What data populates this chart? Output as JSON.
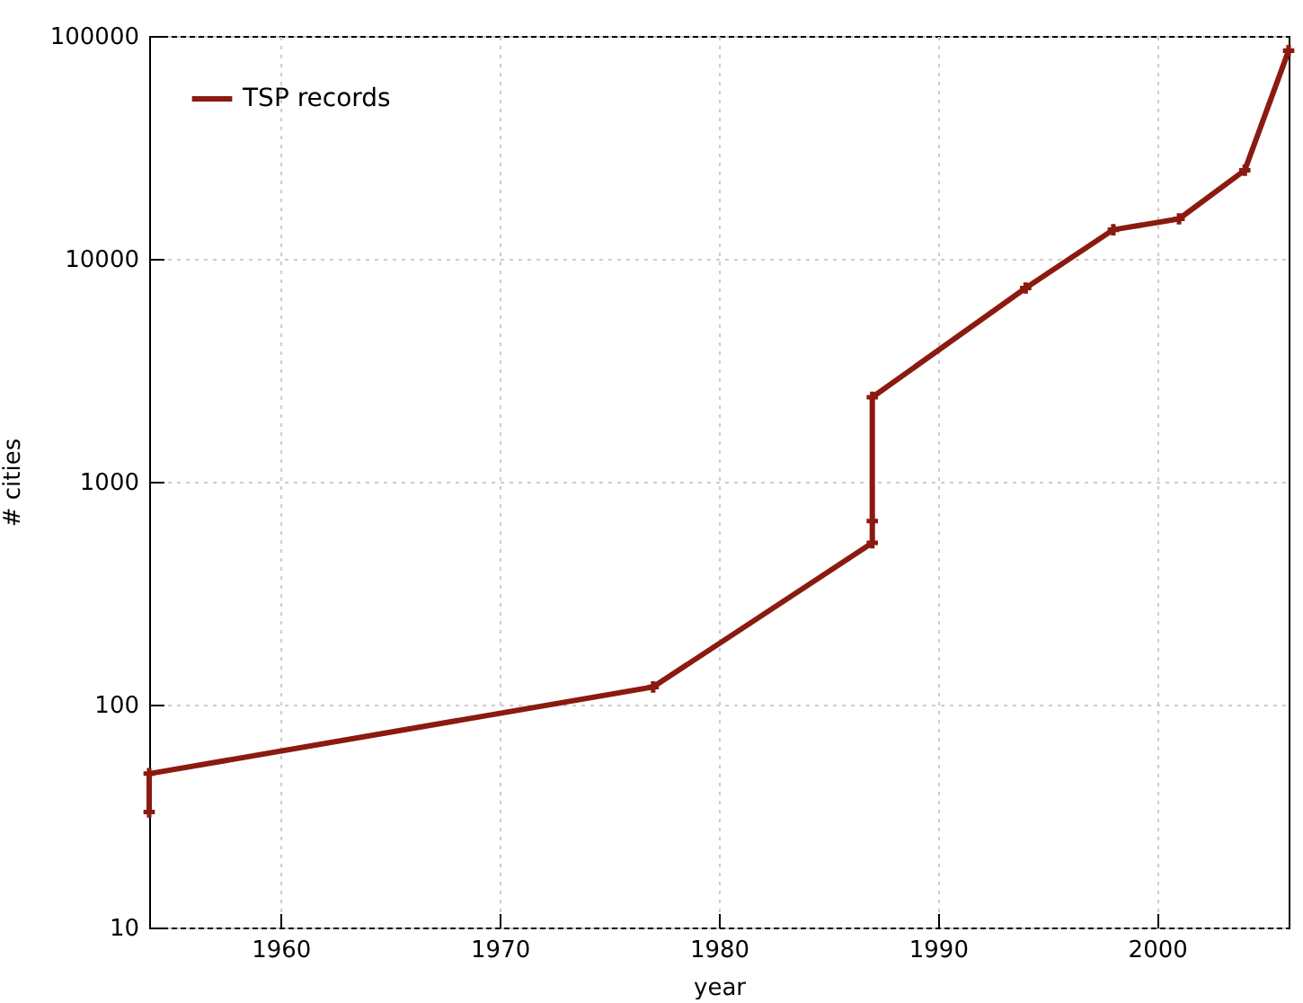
{
  "chart_data": {
    "type": "line",
    "xlabel": "year",
    "ylabel": "# cities",
    "series": [
      {
        "name": "TSP records",
        "color": "#8b1a10",
        "x": [
          1954,
          1954,
          1977,
          1987,
          1987,
          1987,
          1994,
          1998,
          2001,
          2004,
          2006
        ],
        "values": [
          33,
          49,
          120,
          532,
          666,
          2392,
          7397,
          13509,
          15112,
          24978,
          85900
        ]
      }
    ],
    "xlim": [
      1954,
      2006
    ],
    "xticks": [
      1960,
      1970,
      1980,
      1990,
      2000
    ],
    "ylim": [
      10,
      100000
    ],
    "yticks": [
      10,
      100,
      1000,
      10000,
      100000
    ],
    "log": "y",
    "grid": true,
    "legend": "top left",
    "marker": "cross",
    "line_style": "solid"
  }
}
